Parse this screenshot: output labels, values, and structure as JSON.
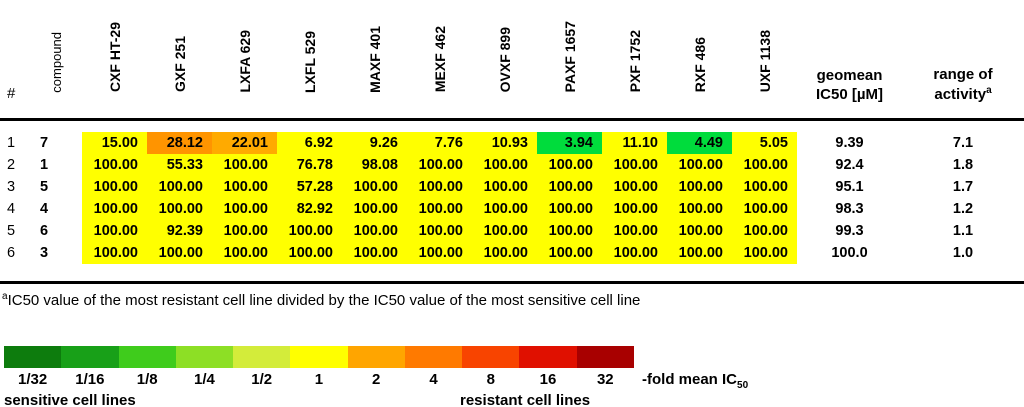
{
  "table": {
    "col_num": "#",
    "col_compound": "compound",
    "cell_lines": [
      "CXF HT-29",
      "GXF 251",
      "LXFA 629",
      "LXFL 529",
      "MAXF 401",
      "MEXF 462",
      "OVXF 899",
      "PAXF 1657",
      "PXF 1752",
      "RXF 486",
      "UXF 1138"
    ],
    "col_geomean": [
      "geomean",
      "IC50 [µM]"
    ],
    "col_range": [
      "range of",
      "activity"
    ],
    "range_sup": "a",
    "rows": [
      {
        "num": "1",
        "compound": "7",
        "values": [
          "15.00",
          "28.12",
          "22.01",
          "6.92",
          "9.26",
          "7.76",
          "10.93",
          "3.94",
          "11.10",
          "4.49",
          "5.05"
        ],
        "colors": [
          "#ffff00",
          "#ff9400",
          "#ffaa00",
          "#ffff00",
          "#ffff00",
          "#ffff00",
          "#ffff00",
          "#00dc3c",
          "#ffff00",
          "#00dc3c",
          "#ffff00"
        ],
        "geomean": "9.39",
        "range": "7.1"
      },
      {
        "num": "2",
        "compound": "1",
        "values": [
          "100.00",
          "55.33",
          "100.00",
          "76.78",
          "98.08",
          "100.00",
          "100.00",
          "100.00",
          "100.00",
          "100.00",
          "100.00"
        ],
        "colors": [
          "#ffff00",
          "#ffff00",
          "#ffff00",
          "#ffff00",
          "#ffff00",
          "#ffff00",
          "#ffff00",
          "#ffff00",
          "#ffff00",
          "#ffff00",
          "#ffff00"
        ],
        "geomean": "92.4",
        "range": "1.8"
      },
      {
        "num": "3",
        "compound": "5",
        "values": [
          "100.00",
          "100.00",
          "100.00",
          "57.28",
          "100.00",
          "100.00",
          "100.00",
          "100.00",
          "100.00",
          "100.00",
          "100.00"
        ],
        "colors": [
          "#ffff00",
          "#ffff00",
          "#ffff00",
          "#ffff00",
          "#ffff00",
          "#ffff00",
          "#ffff00",
          "#ffff00",
          "#ffff00",
          "#ffff00",
          "#ffff00"
        ],
        "geomean": "95.1",
        "range": "1.7"
      },
      {
        "num": "4",
        "compound": "4",
        "values": [
          "100.00",
          "100.00",
          "100.00",
          "82.92",
          "100.00",
          "100.00",
          "100.00",
          "100.00",
          "100.00",
          "100.00",
          "100.00"
        ],
        "colors": [
          "#ffff00",
          "#ffff00",
          "#ffff00",
          "#ffff00",
          "#ffff00",
          "#ffff00",
          "#ffff00",
          "#ffff00",
          "#ffff00",
          "#ffff00",
          "#ffff00"
        ],
        "geomean": "98.3",
        "range": "1.2"
      },
      {
        "num": "5",
        "compound": "6",
        "values": [
          "100.00",
          "92.39",
          "100.00",
          "100.00",
          "100.00",
          "100.00",
          "100.00",
          "100.00",
          "100.00",
          "100.00",
          "100.00"
        ],
        "colors": [
          "#ffff00",
          "#ffff00",
          "#ffff00",
          "#ffff00",
          "#ffff00",
          "#ffff00",
          "#ffff00",
          "#ffff00",
          "#ffff00",
          "#ffff00",
          "#ffff00"
        ],
        "geomean": "99.3",
        "range": "1.1"
      },
      {
        "num": "6",
        "compound": "3",
        "values": [
          "100.00",
          "100.00",
          "100.00",
          "100.00",
          "100.00",
          "100.00",
          "100.00",
          "100.00",
          "100.00",
          "100.00",
          "100.00"
        ],
        "colors": [
          "#ffff00",
          "#ffff00",
          "#ffff00",
          "#ffff00",
          "#ffff00",
          "#ffff00",
          "#ffff00",
          "#ffff00",
          "#ffff00",
          "#ffff00",
          "#ffff00"
        ],
        "geomean": "100.0",
        "range": "1.0"
      }
    ]
  },
  "footnote": {
    "sup": "a",
    "text": "IC50 value of the most resistant cell line divided by the IC50 value of the most sensitive cell line"
  },
  "legend": {
    "swatches": [
      {
        "label": "1/32",
        "color": "#0d7c0d"
      },
      {
        "label": "1/16",
        "color": "#18a018"
      },
      {
        "label": "1/8",
        "color": "#3fcc1c"
      },
      {
        "label": "1/4",
        "color": "#8ddf25"
      },
      {
        "label": "1/2",
        "color": "#d3ec3a"
      },
      {
        "label": "1",
        "color": "#ffff00"
      },
      {
        "label": "2",
        "color": "#ffa500"
      },
      {
        "label": "4",
        "color": "#ff7a00"
      },
      {
        "label": "8",
        "color": "#f84400"
      },
      {
        "label": "16",
        "color": "#e01000"
      },
      {
        "label": "32",
        "color": "#a80000"
      }
    ],
    "suffix": "-fold mean IC",
    "suffix_sub": "50",
    "left_caption": "sensitive cell lines",
    "right_caption": "resistant cell lines"
  },
  "chart_data": {
    "type": "heatmap",
    "columns": [
      "CXF HT-29",
      "GXF 251",
      "LXFA 629",
      "LXFL 529",
      "MAXF 401",
      "MEXF 462",
      "OVXF 899",
      "PAXF 1657",
      "PXF 1752",
      "RXF 486",
      "UXF 1138"
    ],
    "rows": [
      {
        "num": 1,
        "compound": "7",
        "values": [
          15.0,
          28.12,
          22.01,
          6.92,
          9.26,
          7.76,
          10.93,
          3.94,
          11.1,
          4.49,
          5.05
        ],
        "geomean_ic50_uM": 9.39,
        "range_of_activity": 7.1
      },
      {
        "num": 2,
        "compound": "1",
        "values": [
          100.0,
          55.33,
          100.0,
          76.78,
          98.08,
          100.0,
          100.0,
          100.0,
          100.0,
          100.0,
          100.0
        ],
        "geomean_ic50_uM": 92.4,
        "range_of_activity": 1.8
      },
      {
        "num": 3,
        "compound": "5",
        "values": [
          100.0,
          100.0,
          100.0,
          57.28,
          100.0,
          100.0,
          100.0,
          100.0,
          100.0,
          100.0,
          100.0
        ],
        "geomean_ic50_uM": 95.1,
        "range_of_activity": 1.7
      },
      {
        "num": 4,
        "compound": "4",
        "values": [
          100.0,
          100.0,
          100.0,
          82.92,
          100.0,
          100.0,
          100.0,
          100.0,
          100.0,
          100.0,
          100.0
        ],
        "geomean_ic50_uM": 98.3,
        "range_of_activity": 1.2
      },
      {
        "num": 5,
        "compound": "6",
        "values": [
          100.0,
          92.39,
          100.0,
          100.0,
          100.0,
          100.0,
          100.0,
          100.0,
          100.0,
          100.0,
          100.0
        ],
        "geomean_ic50_uM": 99.3,
        "range_of_activity": 1.1
      },
      {
        "num": 6,
        "compound": "3",
        "values": [
          100.0,
          100.0,
          100.0,
          100.0,
          100.0,
          100.0,
          100.0,
          100.0,
          100.0,
          100.0,
          100.0
        ],
        "geomean_ic50_uM": 100.0,
        "range_of_activity": 1.0
      }
    ],
    "color_scale": {
      "tick_labels": [
        "1/32",
        "1/16",
        "1/8",
        "1/4",
        "1/2",
        "1",
        "2",
        "4",
        "8",
        "16",
        "32"
      ],
      "unit": "-fold mean IC50",
      "left_label": "sensitive cell lines",
      "right_label": "resistant cell lines"
    }
  }
}
